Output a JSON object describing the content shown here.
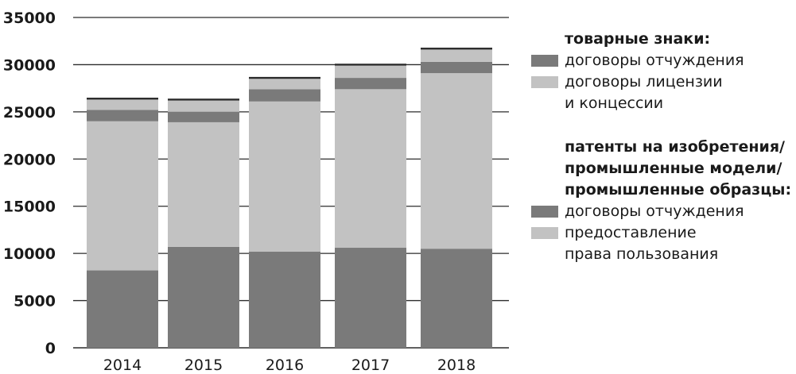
{
  "chart_data": {
    "type": "bar",
    "stacked": true,
    "categories": [
      "2014",
      "2015",
      "2016",
      "2017",
      "2018"
    ],
    "ylim": [
      0,
      35000
    ],
    "yticks": [
      0,
      5000,
      10000,
      15000,
      20000,
      25000,
      30000,
      35000
    ],
    "ytick_labels": [
      "0",
      "5000",
      "10000",
      "15000",
      "20000",
      "25000",
      "30000",
      "35000"
    ],
    "grid": "horizontal",
    "legend_position": "right",
    "series": [
      {
        "group": "patents",
        "name": "договоры отчуждения",
        "color": "#7a7a7a",
        "values": [
          8200,
          10700,
          10200,
          10600,
          10500
        ]
      },
      {
        "group": "patents",
        "name": "предоставление\nправа пользования",
        "color": "#c2c2c2",
        "values": [
          15800,
          13200,
          15900,
          16800,
          18600
        ]
      },
      {
        "group": "trademarks",
        "name": "договоры отчуждения",
        "color": "#7a7a7a",
        "values": [
          1200,
          1100,
          1300,
          1200,
          1200
        ]
      },
      {
        "group": "trademarks",
        "name": "договоры лицензии\nи концессии",
        "color": "#c2c2c2",
        "values": [
          1100,
          1200,
          1100,
          1300,
          1300
        ]
      },
      {
        "group": "other",
        "name": "",
        "color": "#2a2a2a",
        "values": [
          200,
          200,
          200,
          200,
          200
        ]
      }
    ]
  },
  "legend": {
    "trademarks_title": "товарные знаки:",
    "trademarks_items": [
      {
        "label": "договоры отчуждения",
        "color": "#7a7a7a"
      },
      {
        "label": "договоры лицензии\nи концессии",
        "color": "#c2c2c2"
      }
    ],
    "patents_title": "патенты на изобретения/\nпромышленные модели/\nпромышленные образцы:",
    "patents_items": [
      {
        "label": "договоры отчуждения",
        "color": "#7a7a7a"
      },
      {
        "label": "предоставление\nправа пользования",
        "color": "#c2c2c2"
      }
    ]
  }
}
